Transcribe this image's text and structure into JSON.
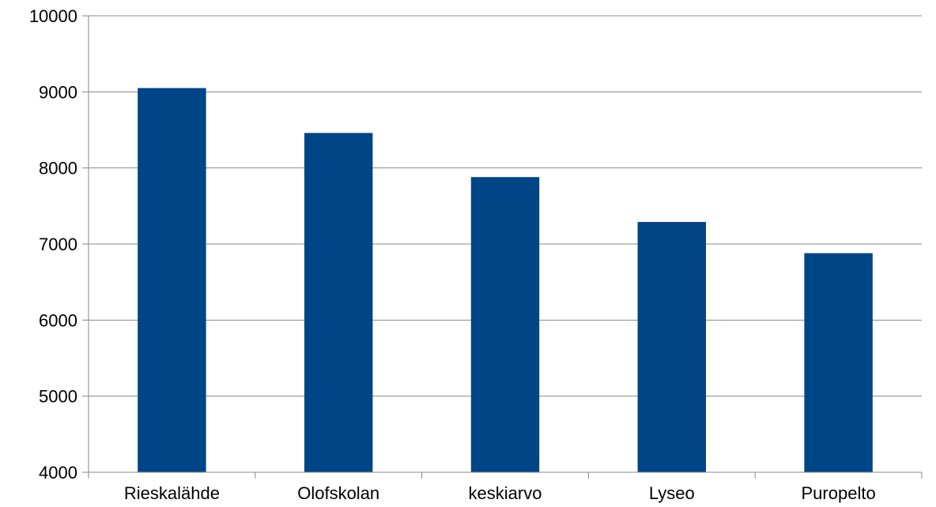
{
  "chart_data": {
    "type": "bar",
    "categories": [
      "Rieskalähde",
      "Olofskolan",
      "keskiarvo",
      "Lyseo",
      "Puropelto"
    ],
    "values": [
      9050,
      8460,
      7880,
      7290,
      6880
    ],
    "ylim": [
      4000,
      10000
    ],
    "yticks": [
      "4000",
      "5000",
      "6000",
      "7000",
      "8000",
      "9000",
      "10000"
    ],
    "grid": true,
    "legend": "none",
    "colors": {
      "bar": "#004586",
      "grid": "#888888",
      "axis": "#888888"
    }
  }
}
